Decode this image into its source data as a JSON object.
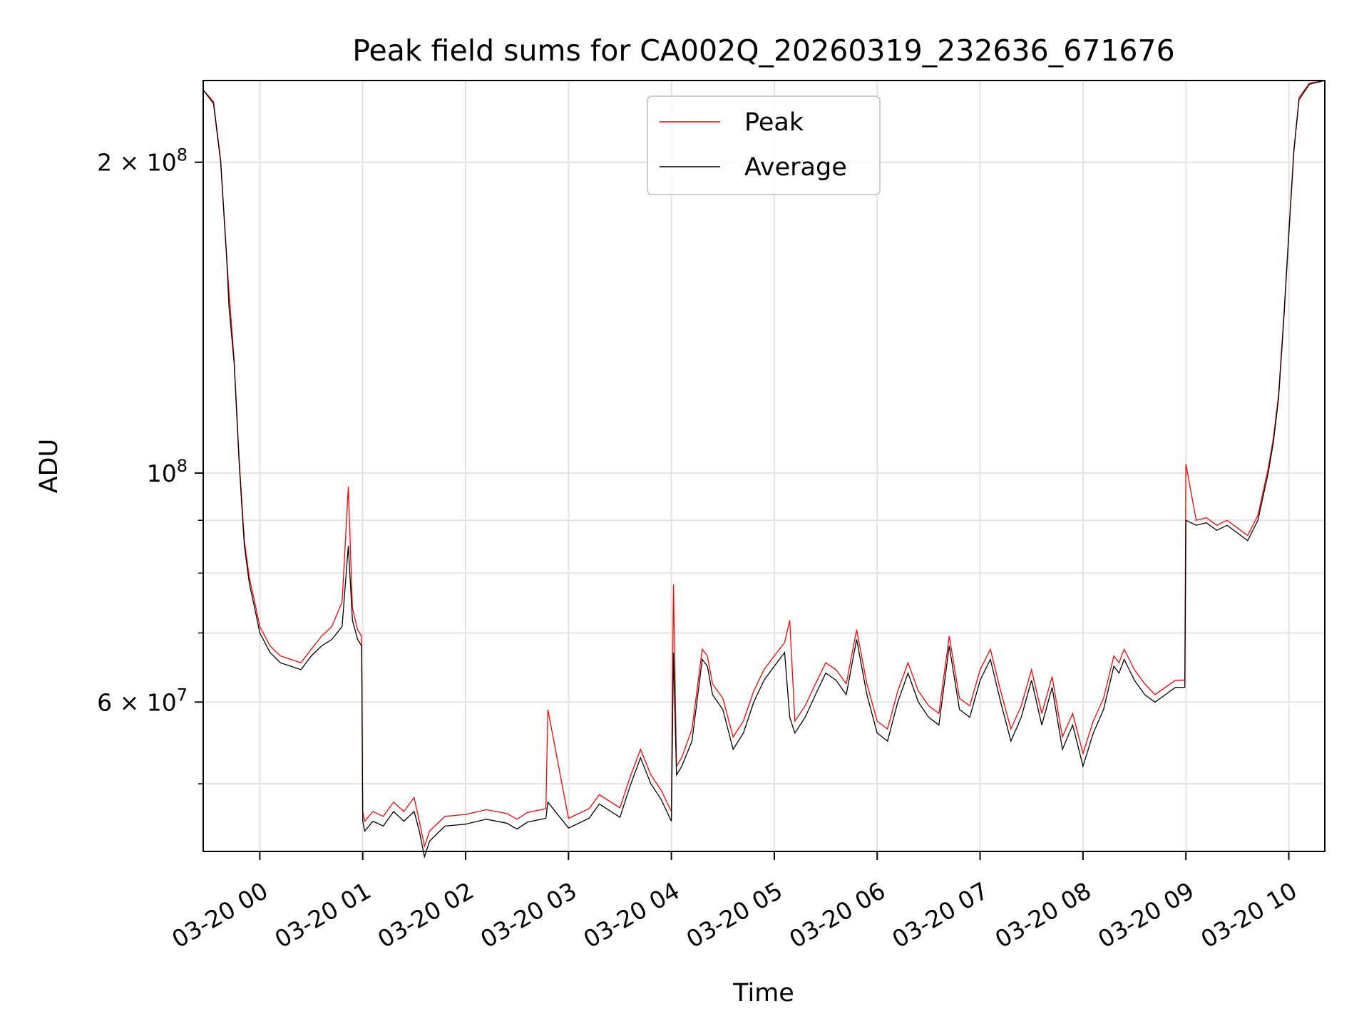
{
  "chart_data": {
    "type": "line",
    "title": "Peak field sums for CA002Q_20260319_232636_671676",
    "xlabel": "Time",
    "ylabel": "ADU",
    "yscale": "log",
    "ylim": [
      43000000,
      240000000
    ],
    "xlim_hours_from_0320_0000": [
      -0.55,
      10.35
    ],
    "grid": true,
    "legend_position": "top-center",
    "x_tick_labels": [
      "03-20 00",
      "03-20 01",
      "03-20 02",
      "03-20 03",
      "03-20 04",
      "03-20 05",
      "03-20 06",
      "03-20 07",
      "03-20 08",
      "03-20 09",
      "03-20 10"
    ],
    "x_tick_hours": [
      0,
      1,
      2,
      3,
      4,
      5,
      6,
      7,
      8,
      9,
      10
    ],
    "y_major_ticks": [
      {
        "value": 200000000,
        "mantissa": "2",
        "exponent": "8"
      },
      {
        "value": 100000000,
        "mantissa": "",
        "exponent": "8"
      },
      {
        "value": 60000000,
        "mantissa": "6",
        "exponent": "7"
      }
    ],
    "y_minor_ticks": [
      50000000,
      70000000,
      80000000,
      90000000
    ],
    "series": [
      {
        "name": "Peak",
        "color": "#ff0000",
        "width": 1.3
      },
      {
        "name": "Average",
        "color": "#000000",
        "width": 1.3
      }
    ],
    "x_hours": [
      -0.55,
      -0.45,
      -0.38,
      -0.32,
      -0.3,
      -0.25,
      -0.2,
      -0.15,
      -0.1,
      -0.05,
      0.0,
      0.1,
      0.2,
      0.3,
      0.4,
      0.5,
      0.6,
      0.7,
      0.8,
      0.86,
      0.9,
      0.95,
      0.99,
      1.0,
      1.02,
      1.1,
      1.2,
      1.3,
      1.4,
      1.5,
      1.55,
      1.6,
      1.65,
      1.7,
      1.75,
      1.8,
      2.0,
      2.2,
      2.4,
      2.5,
      2.6,
      2.78,
      2.8,
      3.0,
      3.2,
      3.3,
      3.5,
      3.6,
      3.7,
      3.8,
      3.9,
      4.0,
      4.02,
      4.05,
      4.1,
      4.2,
      4.3,
      4.35,
      4.4,
      4.5,
      4.6,
      4.7,
      4.8,
      4.9,
      5.0,
      5.1,
      5.15,
      5.2,
      5.3,
      5.4,
      5.5,
      5.6,
      5.7,
      5.8,
      5.9,
      6.0,
      6.1,
      6.2,
      6.3,
      6.4,
      6.5,
      6.6,
      6.7,
      6.8,
      6.9,
      7.0,
      7.1,
      7.2,
      7.3,
      7.4,
      7.5,
      7.6,
      7.7,
      7.8,
      7.9,
      8.0,
      8.1,
      8.2,
      8.3,
      8.35,
      8.4,
      8.5,
      8.6,
      8.7,
      8.8,
      8.9,
      8.99,
      9.0,
      9.1,
      9.2,
      9.3,
      9.4,
      9.5,
      9.6,
      9.7,
      9.8,
      9.85,
      9.9,
      9.95,
      10.0,
      10.05,
      10.1,
      10.2,
      10.35
    ],
    "average_values": [
      235000000,
      228000000,
      200000000,
      160000000,
      145000000,
      128000000,
      102000000,
      85000000,
      78000000,
      74000000,
      70000000,
      67000000,
      65500000,
      65000000,
      64500000,
      66500000,
      68000000,
      69000000,
      71000000,
      85000000,
      72000000,
      69000000,
      68000000,
      46000000,
      45000000,
      46000000,
      45500000,
      47000000,
      46000000,
      47000000,
      45000000,
      42500000,
      44000000,
      44500000,
      45000000,
      45500000,
      45700000,
      46200000,
      45800000,
      45200000,
      45900000,
      46300000,
      48000000,
      45300000,
      46300000,
      47800000,
      46400000,
      49800000,
      53000000,
      50000000,
      48300000,
      46000000,
      67000000,
      51000000,
      52000000,
      55000000,
      66000000,
      65000000,
      61000000,
      59000000,
      54000000,
      56000000,
      60000000,
      63000000,
      65000000,
      67000000,
      58000000,
      56000000,
      58000000,
      61000000,
      64000000,
      63000000,
      61000000,
      69000000,
      61000000,
      56000000,
      55000000,
      60000000,
      64000000,
      60000000,
      58000000,
      57000000,
      68000000,
      59000000,
      58000000,
      63000000,
      66000000,
      60000000,
      55000000,
      58000000,
      63000000,
      57000000,
      62000000,
      54000000,
      57000000,
      52000000,
      56000000,
      59000000,
      65000000,
      64000000,
      66000000,
      63000000,
      61000000,
      60000000,
      61000000,
      62000000,
      62000000,
      90000000,
      89000000,
      89500000,
      88000000,
      89000000,
      87500000,
      86000000,
      90000000,
      100000000,
      107000000,
      118000000,
      140000000,
      170000000,
      205000000,
      230000000,
      238000000,
      240000000
    ],
    "peak_values": [
      235000000,
      229000000,
      201000000,
      161000000,
      150000000,
      129000000,
      103000000,
      86000000,
      79000000,
      75000000,
      71000000,
      68000000,
      66500000,
      66000000,
      65500000,
      67500000,
      69500000,
      71000000,
      75000000,
      97000000,
      74000000,
      70500000,
      69500000,
      47000000,
      46000000,
      47000000,
      46500000,
      48000000,
      47000000,
      48500000,
      46000000,
      43500000,
      45000000,
      45500000,
      46000000,
      46500000,
      46700000,
      47200000,
      46800000,
      46200000,
      46900000,
      47300000,
      59000000,
      46300000,
      47300000,
      48800000,
      47400000,
      50800000,
      54000000,
      51000000,
      49300000,
      47000000,
      78000000,
      52000000,
      53000000,
      56500000,
      67500000,
      66500000,
      62500000,
      60500000,
      55500000,
      57500000,
      61500000,
      64500000,
      66500000,
      68500000,
      72000000,
      57500000,
      59500000,
      62500000,
      65500000,
      64500000,
      62500000,
      70500000,
      62500000,
      57500000,
      56500000,
      61500000,
      65500000,
      61500000,
      59500000,
      58500000,
      69500000,
      60500000,
      59500000,
      64500000,
      67500000,
      61500000,
      56500000,
      59500000,
      64500000,
      58500000,
      63500000,
      55500000,
      58500000,
      53500000,
      57500000,
      60500000,
      66500000,
      65500000,
      67500000,
      64500000,
      62500000,
      61000000,
      62000000,
      63000000,
      63000000,
      102000000,
      90000000,
      90500000,
      89000000,
      90000000,
      88500000,
      87000000,
      91000000,
      101000000,
      108000000,
      119000000,
      141000000,
      171000000,
      206000000,
      231000000,
      238500000,
      240000000
    ]
  }
}
